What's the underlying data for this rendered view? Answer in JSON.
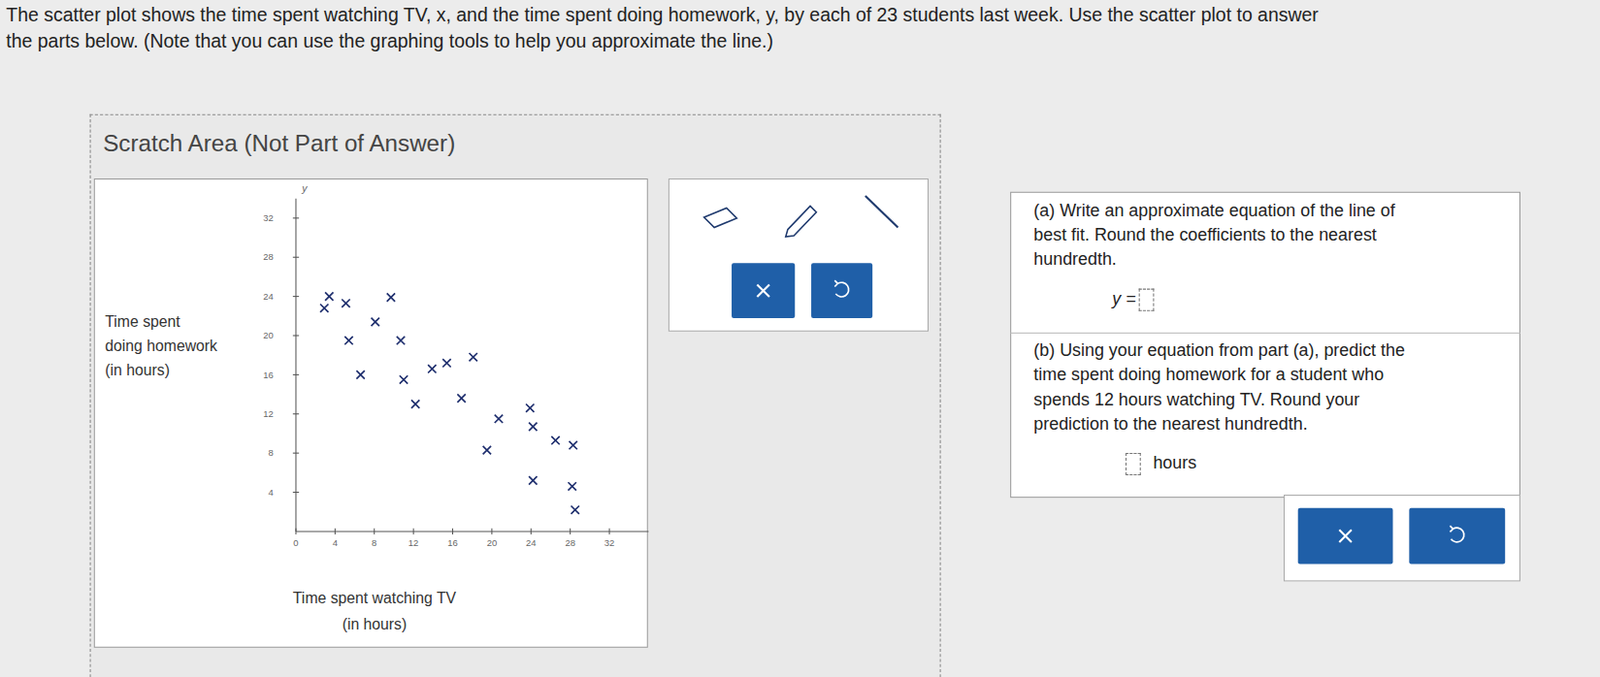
{
  "chart_data": {
    "type": "scatter",
    "marker": "x",
    "color": "#1f2f6e",
    "grid": false,
    "y_axis_name": "y",
    "xlabel": [
      "Time spent watching TV",
      "(in hours)"
    ],
    "ylabel": [
      "Time spent",
      "doing homework",
      "(in hours)"
    ],
    "x": [
      3.4,
      2.9,
      5.1,
      9.7,
      8.1,
      5.4,
      10.7,
      18.1,
      6.6,
      11.0,
      13.9,
      15.4,
      12.2,
      16.9,
      23.9,
      20.7,
      24.2,
      26.5,
      28.3,
      19.5,
      24.2,
      28.2,
      28.5
    ],
    "y": [
      24.0,
      22.8,
      23.3,
      23.9,
      21.4,
      19.5,
      19.5,
      17.8,
      16.0,
      15.5,
      16.6,
      17.2,
      13.0,
      13.6,
      12.6,
      11.5,
      10.7,
      9.3,
      8.8,
      8.3,
      5.2,
      4.6,
      2.2
    ],
    "xlim": [
      0,
      36
    ],
    "ylim": [
      0,
      34
    ],
    "xticks": [
      0,
      4,
      8,
      12,
      16,
      20,
      24,
      28,
      32
    ],
    "yticks": [
      4,
      8,
      12,
      16,
      20,
      24,
      28,
      32
    ]
  },
  "page": {
    "intro": [
      "The scatter plot shows the time spent watching TV, x, and the time spent doing homework, y, by each of 23 students last week. Use the scatter plot to answer",
      "the parts below. (Note that you can use the graphing tools to help you approximate the line.)"
    ],
    "scratch_title": "Scratch Area (Not Part of Answer)",
    "part_a": [
      "(a) Write an approximate equation of the line of",
      "best fit. Round the coefficients to the nearest",
      "hundredth."
    ],
    "part_a_prefix": "y =",
    "part_b": [
      "(b) Using your equation from part (a), predict the",
      "time spent doing homework for a student who",
      "spends 12 hours watching TV. Round your",
      "prediction to the nearest hundredth."
    ],
    "part_b_unit": "hours"
  }
}
